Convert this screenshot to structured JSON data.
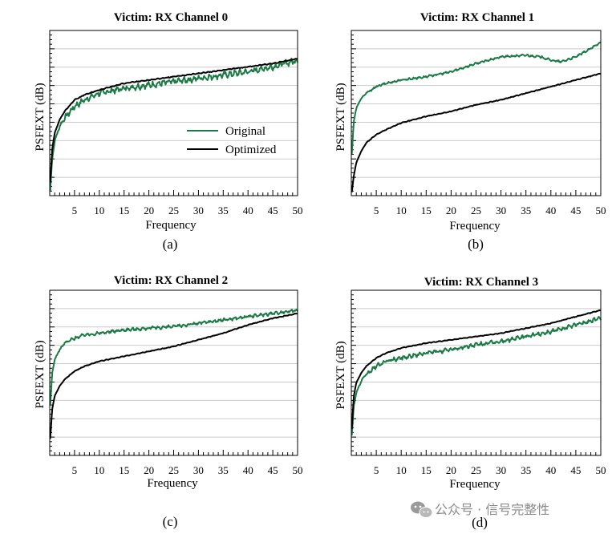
{
  "colors": {
    "original": "#1a7a45",
    "optimized": "#000000",
    "grid": "#cccccc"
  },
  "watermark": {
    "icon": "wechat-icon",
    "text": "公众号 · 信号完整性"
  },
  "chart_data": [
    {
      "type": "line",
      "title": "Victim: RX Channel 0",
      "caption": "(a)",
      "xlabel": "Frequency",
      "ylabel": "PSFEXT (dB)",
      "xlim": [
        0,
        50
      ],
      "ylim": [
        0,
        100
      ],
      "xticks": [
        5,
        10,
        15,
        20,
        25,
        30,
        35,
        40,
        45,
        50
      ],
      "legend": {
        "position": "lower-right",
        "entries": [
          "Original",
          "Optimized"
        ]
      },
      "series": [
        {
          "name": "Original",
          "color": "#1a7a45",
          "noise": 1.8,
          "x": [
            0.1,
            0.5,
            1,
            2,
            3,
            5,
            7,
            10,
            15,
            20,
            25,
            30,
            35,
            40,
            45,
            50
          ],
          "y": [
            3,
            22,
            33,
            42,
            47,
            54,
            58,
            62,
            65,
            67,
            69,
            71,
            73,
            75,
            78,
            82
          ]
        },
        {
          "name": "Optimized",
          "color": "#000000",
          "noise": 0.25,
          "x": [
            0.1,
            0.5,
            1,
            2,
            3,
            5,
            7,
            10,
            15,
            20,
            25,
            30,
            35,
            40,
            45,
            50
          ],
          "y": [
            8,
            28,
            38,
            46,
            51,
            58,
            61,
            64,
            68,
            70,
            72,
            74,
            76,
            78,
            80,
            83
          ]
        }
      ]
    },
    {
      "type": "line",
      "title": "Victim: RX Channel 1",
      "caption": "(b)",
      "xlabel": "Frequency",
      "ylabel": "PSFEXT (dB)",
      "xlim": [
        0,
        50
      ],
      "ylim": [
        0,
        100
      ],
      "xticks": [
        5,
        10,
        15,
        20,
        25,
        30,
        35,
        40,
        45,
        50
      ],
      "series": [
        {
          "name": "Original",
          "color": "#1a7a45",
          "noise": 0.6,
          "x": [
            0.1,
            0.5,
            1,
            2,
            3,
            5,
            7,
            10,
            15,
            20,
            25,
            30,
            35,
            38,
            40,
            42,
            45,
            48,
            50
          ],
          "y": [
            25,
            45,
            53,
            59,
            62,
            66,
            68,
            70,
            72,
            75,
            80,
            84,
            85,
            84,
            82,
            81,
            84,
            89,
            93
          ]
        },
        {
          "name": "Optimized",
          "color": "#000000",
          "noise": 0.2,
          "x": [
            0.1,
            0.5,
            1,
            2,
            3,
            5,
            7,
            10,
            15,
            20,
            25,
            30,
            35,
            40,
            45,
            50
          ],
          "y": [
            2,
            12,
            20,
            27,
            32,
            37,
            40,
            44,
            48,
            51,
            55,
            58,
            62,
            66,
            70,
            74
          ]
        }
      ]
    },
    {
      "type": "line",
      "title": "Victim: RX Channel 2",
      "caption": "(c)",
      "xlabel": "Frequency",
      "ylabel": "PSFEXT (dB)",
      "xlim": [
        0,
        50
      ],
      "ylim": [
        0,
        100
      ],
      "xticks": [
        5,
        10,
        15,
        20,
        25,
        30,
        35,
        40,
        45,
        50
      ],
      "series": [
        {
          "name": "Original",
          "color": "#1a7a45",
          "noise": 0.9,
          "x": [
            0.1,
            0.5,
            1,
            2,
            3,
            5,
            7,
            10,
            15,
            20,
            25,
            30,
            35,
            40,
            45,
            50
          ],
          "y": [
            30,
            50,
            58,
            64,
            68,
            71,
            73,
            74,
            76,
            77,
            78,
            80,
            82,
            84,
            86,
            88
          ]
        },
        {
          "name": "Optimized",
          "color": "#000000",
          "noise": 0.2,
          "x": [
            0.1,
            0.5,
            1,
            2,
            3,
            5,
            7,
            10,
            15,
            20,
            25,
            30,
            35,
            40,
            45,
            50
          ],
          "y": [
            10,
            28,
            36,
            42,
            46,
            51,
            54,
            57,
            60,
            63,
            66,
            70,
            74,
            79,
            83,
            86
          ]
        }
      ]
    },
    {
      "type": "line",
      "title": "Victim: RX Channel 3",
      "caption": "(d)",
      "xlabel": "Frequency",
      "ylabel": "PSFEXT (dB)",
      "xlim": [
        0,
        50
      ],
      "ylim": [
        0,
        100
      ],
      "xticks": [
        5,
        10,
        15,
        20,
        25,
        30,
        35,
        40,
        45,
        50
      ],
      "series": [
        {
          "name": "Original",
          "color": "#1a7a45",
          "noise": 1.2,
          "x": [
            0.1,
            0.5,
            1,
            2,
            3,
            5,
            7,
            10,
            15,
            20,
            25,
            30,
            35,
            40,
            45,
            50
          ],
          "y": [
            12,
            30,
            38,
            45,
            49,
            54,
            57,
            59,
            62,
            64,
            67,
            69,
            72,
            75,
            79,
            83
          ]
        },
        {
          "name": "Optimized",
          "color": "#000000",
          "noise": 0.2,
          "x": [
            0.1,
            0.5,
            1,
            2,
            3,
            5,
            7,
            10,
            15,
            20,
            25,
            30,
            35,
            40,
            45,
            50
          ],
          "y": [
            16,
            36,
            44,
            50,
            54,
            59,
            62,
            65,
            68,
            70,
            72,
            74,
            77,
            80,
            84,
            88
          ]
        }
      ]
    }
  ]
}
